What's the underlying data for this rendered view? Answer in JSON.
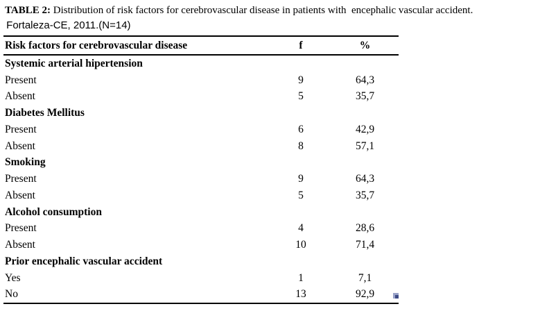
{
  "title": {
    "label": "TABLE 2:",
    "text": " Distribution of risk factors for cerebrovascular disease in patients with  encephalic vascular accident.",
    "subtitle": " Fortaleza-CE, 2011.(N=14)"
  },
  "table": {
    "columns": {
      "risk_factor": "Risk factors for cerebrovascular disease",
      "frequency": "f",
      "percent": "%"
    },
    "rows": [
      {
        "label": "Systemic arterial hipertension",
        "f": "",
        "pct": "",
        "section": true
      },
      {
        "label": "Present",
        "f": "9",
        "pct": "64,3"
      },
      {
        "label": "Absent",
        "f": "5",
        "pct": "35,7"
      },
      {
        "label": "Diabetes Mellitus",
        "f": "",
        "pct": "",
        "section": true
      },
      {
        "label": "Present",
        "f": "6",
        "pct": "42,9"
      },
      {
        "label": "Absent",
        "f": "8",
        "pct": "57,1"
      },
      {
        "label": "Smoking",
        "f": "",
        "pct": "",
        "section": true
      },
      {
        "label": "Present",
        "f": "9",
        "pct": "64,3"
      },
      {
        "label": "Absent",
        "f": "5",
        "pct": "35,7"
      },
      {
        "label": "Alcohol consumption",
        "f": "",
        "pct": "",
        "section": true
      },
      {
        "label": "Present",
        "f": "4",
        "pct": "28,6"
      },
      {
        "label": "Absent",
        "f": "10",
        "pct": "71,4"
      },
      {
        "label": "Prior encephalic vascular accident",
        "f": "",
        "pct": "",
        "section": true
      },
      {
        "label": "Yes",
        "f": "1",
        "pct": "7,1"
      },
      {
        "label": "No",
        "f": "13",
        "pct": "92,9"
      }
    ]
  },
  "icons": {
    "resize_handle": "table-resize-handle"
  },
  "colors": {
    "background": "#ffffff",
    "text": "#000000",
    "rule": "#000000",
    "handle": "#3d4a85"
  }
}
